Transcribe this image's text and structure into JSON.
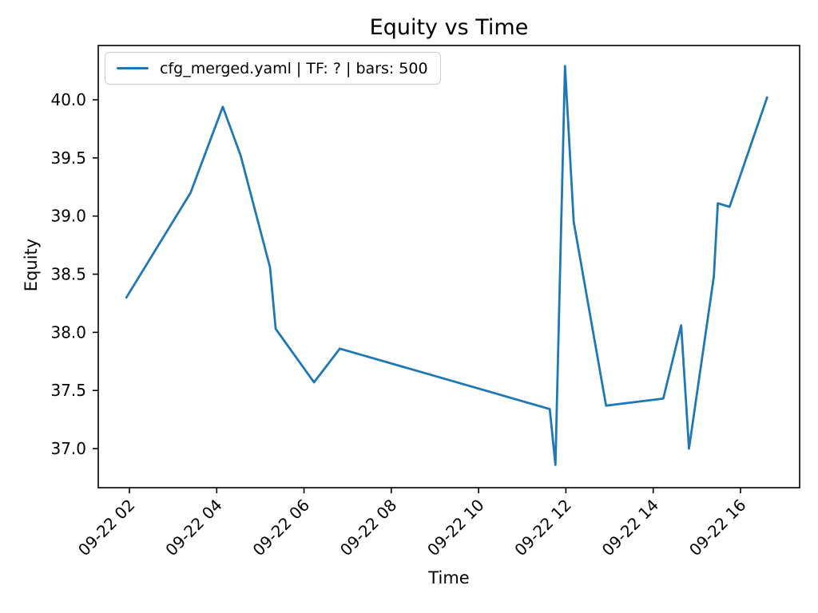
{
  "figure": {
    "background": "#ffffff",
    "text_color": "#000000"
  },
  "chart_data": {
    "type": "line",
    "title": "Equity vs Time",
    "xlabel": "Time",
    "ylabel": "Equity",
    "grid": false,
    "legend": {
      "position": "upper left",
      "label": "cfg_merged.yaml | TF: ? | bars: 500"
    },
    "line_color": "#1f77b4",
    "x_is": "hours of day on 09-22 (decimal)",
    "xlim": [
      1.286,
      17.355
    ],
    "ylim": [
      36.664,
      40.467
    ],
    "x_ticks": [
      {
        "value": 2,
        "label": "09-22 02"
      },
      {
        "value": 4,
        "label": "09-22 04"
      },
      {
        "value": 6,
        "label": "09-22 06"
      },
      {
        "value": 8,
        "label": "09-22 08"
      },
      {
        "value": 10,
        "label": "09-22 10"
      },
      {
        "value": 12,
        "label": "09-22 12"
      },
      {
        "value": 14,
        "label": "09-22 14"
      },
      {
        "value": 16,
        "label": "09-22 16"
      }
    ],
    "x_tick_rotation": 45,
    "y_ticks": [
      {
        "value": 37.0,
        "label": "37.0"
      },
      {
        "value": 37.5,
        "label": "37.5"
      },
      {
        "value": 38.0,
        "label": "38.0"
      },
      {
        "value": 38.5,
        "label": "38.5"
      },
      {
        "value": 39.0,
        "label": "39.0"
      },
      {
        "value": 39.5,
        "label": "39.5"
      },
      {
        "value": 40.0,
        "label": "40.0"
      }
    ],
    "series": [
      {
        "name": "cfg_merged.yaml | TF: ? | bars: 500",
        "color": "#1f77b4",
        "points": [
          [
            1.93,
            38.3
          ],
          [
            3.4,
            39.2
          ],
          [
            4.14,
            39.94
          ],
          [
            4.55,
            39.52
          ],
          [
            5.22,
            38.56
          ],
          [
            5.35,
            38.03
          ],
          [
            6.23,
            37.57
          ],
          [
            6.82,
            37.86
          ],
          [
            11.63,
            37.34
          ],
          [
            11.76,
            36.86
          ],
          [
            11.98,
            40.29
          ],
          [
            12.18,
            38.95
          ],
          [
            12.92,
            37.37
          ],
          [
            14.23,
            37.43
          ],
          [
            14.64,
            38.06
          ],
          [
            14.82,
            37.0
          ],
          [
            15.39,
            38.48
          ],
          [
            15.48,
            39.11
          ],
          [
            15.75,
            39.08
          ],
          [
            16.61,
            40.02
          ]
        ]
      }
    ]
  }
}
